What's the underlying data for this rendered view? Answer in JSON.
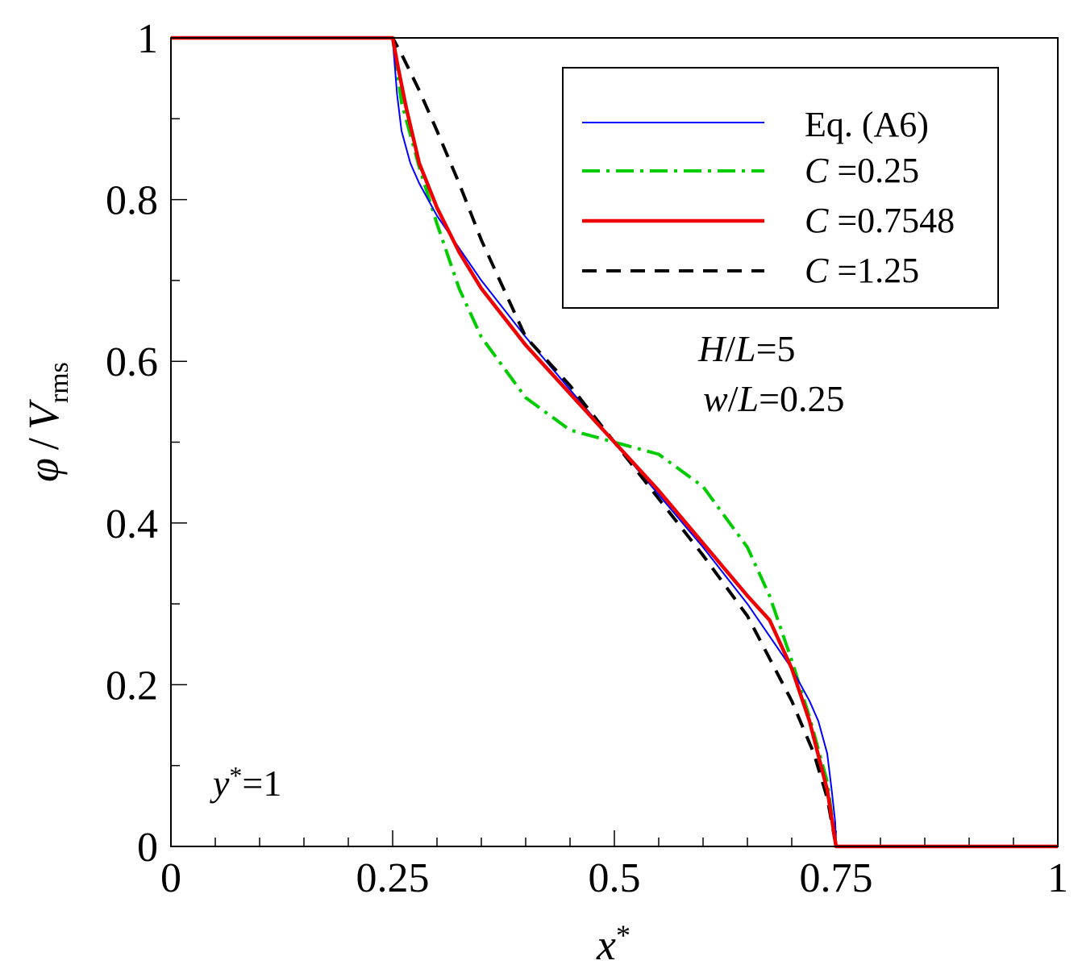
{
  "chart_data": {
    "type": "line",
    "xlabel": "x*",
    "ylabel": "φ / V_rms",
    "xlim": [
      0,
      1
    ],
    "ylim": [
      0,
      1
    ],
    "x_ticks": [
      0,
      0.25,
      0.5,
      0.75,
      1
    ],
    "x_tick_labels": [
      "0",
      "0.25",
      "0.5",
      "0.75",
      "1"
    ],
    "y_ticks": [
      0,
      0.2,
      0.4,
      0.6,
      0.8,
      1
    ],
    "y_tick_labels": [
      "0",
      "0.2",
      "0.4",
      "0.6",
      "0.8",
      "1"
    ],
    "legend_position": "top-right",
    "annotations": [
      {
        "label": "H/L=5",
        "position": "right-middle"
      },
      {
        "label": "w/L=0.25",
        "position": "right-middle"
      },
      {
        "label": "y*=1",
        "position": "bottom-left"
      }
    ],
    "series": [
      {
        "name": "Eq. (A6)",
        "color": "#0000ff",
        "style": "solid-thin",
        "x": [
          0,
          0.25,
          0.251,
          0.255,
          0.26,
          0.27,
          0.28,
          0.3,
          0.325,
          0.35,
          0.4,
          0.45,
          0.5,
          0.55,
          0.6,
          0.65,
          0.675,
          0.7,
          0.72,
          0.73,
          0.74,
          0.745,
          0.749,
          0.75,
          1
        ],
        "y": [
          1,
          1,
          0.985,
          0.93,
          0.885,
          0.845,
          0.82,
          0.78,
          0.74,
          0.7,
          0.63,
          0.565,
          0.5,
          0.435,
          0.37,
          0.3,
          0.26,
          0.22,
          0.18,
          0.155,
          0.115,
          0.07,
          0.03,
          0,
          0
        ]
      },
      {
        "name": "C=0.25",
        "color": "#00cc00",
        "style": "dash-dot",
        "x": [
          0,
          0.25,
          0.26,
          0.28,
          0.3,
          0.325,
          0.35,
          0.4,
          0.45,
          0.5,
          0.55,
          0.6,
          0.65,
          0.675,
          0.7,
          0.72,
          0.74,
          0.75,
          1
        ],
        "y": [
          1,
          1,
          0.92,
          0.84,
          0.77,
          0.69,
          0.63,
          0.555,
          0.515,
          0.5,
          0.485,
          0.445,
          0.37,
          0.31,
          0.23,
          0.16,
          0.08,
          0,
          0
        ]
      },
      {
        "name": "C=0.7548",
        "color": "#ee0000",
        "style": "solid-thick",
        "x": [
          0,
          0.25,
          0.255,
          0.265,
          0.28,
          0.3,
          0.325,
          0.35,
          0.4,
          0.45,
          0.5,
          0.55,
          0.6,
          0.65,
          0.675,
          0.7,
          0.72,
          0.74,
          0.75,
          1
        ],
        "y": [
          1,
          1,
          0.97,
          0.915,
          0.845,
          0.79,
          0.735,
          0.69,
          0.62,
          0.56,
          0.5,
          0.44,
          0.375,
          0.31,
          0.28,
          0.22,
          0.155,
          0.07,
          0,
          0
        ]
      },
      {
        "name": "C=1.25",
        "color": "#000000",
        "style": "dashed",
        "x": [
          0,
          0.25,
          0.26,
          0.28,
          0.3,
          0.325,
          0.35,
          0.4,
          0.45,
          0.5,
          0.55,
          0.6,
          0.65,
          0.7,
          0.725,
          0.74,
          0.75,
          1
        ],
        "y": [
          1,
          1,
          0.98,
          0.935,
          0.885,
          0.82,
          0.75,
          0.63,
          0.57,
          0.5,
          0.43,
          0.36,
          0.285,
          0.18,
          0.115,
          0.06,
          0,
          0
        ]
      }
    ]
  },
  "legend": {
    "items": [
      {
        "prefix": "",
        "value": "Eq. (A6)"
      },
      {
        "prefix": "C",
        "value": " =0.25"
      },
      {
        "prefix": "C",
        "value": " =0.7548"
      },
      {
        "prefix": "C",
        "value": " =1.25"
      }
    ]
  },
  "annotations": {
    "hl_var_h": "H",
    "hl_slash": "/",
    "hl_var_l": "L",
    "hl_value": "=5",
    "wl_var_w": "w",
    "wl_slash": "/",
    "wl_var_l": "L",
    "wl_value": "=0.25",
    "y_var": "y",
    "y_star": "*",
    "y_value": "=1"
  },
  "axis_labels": {
    "x_var": "x",
    "x_star": "*",
    "y_phi": "φ",
    "y_slash": "/",
    "y_v": "V",
    "y_sub": "rms"
  }
}
